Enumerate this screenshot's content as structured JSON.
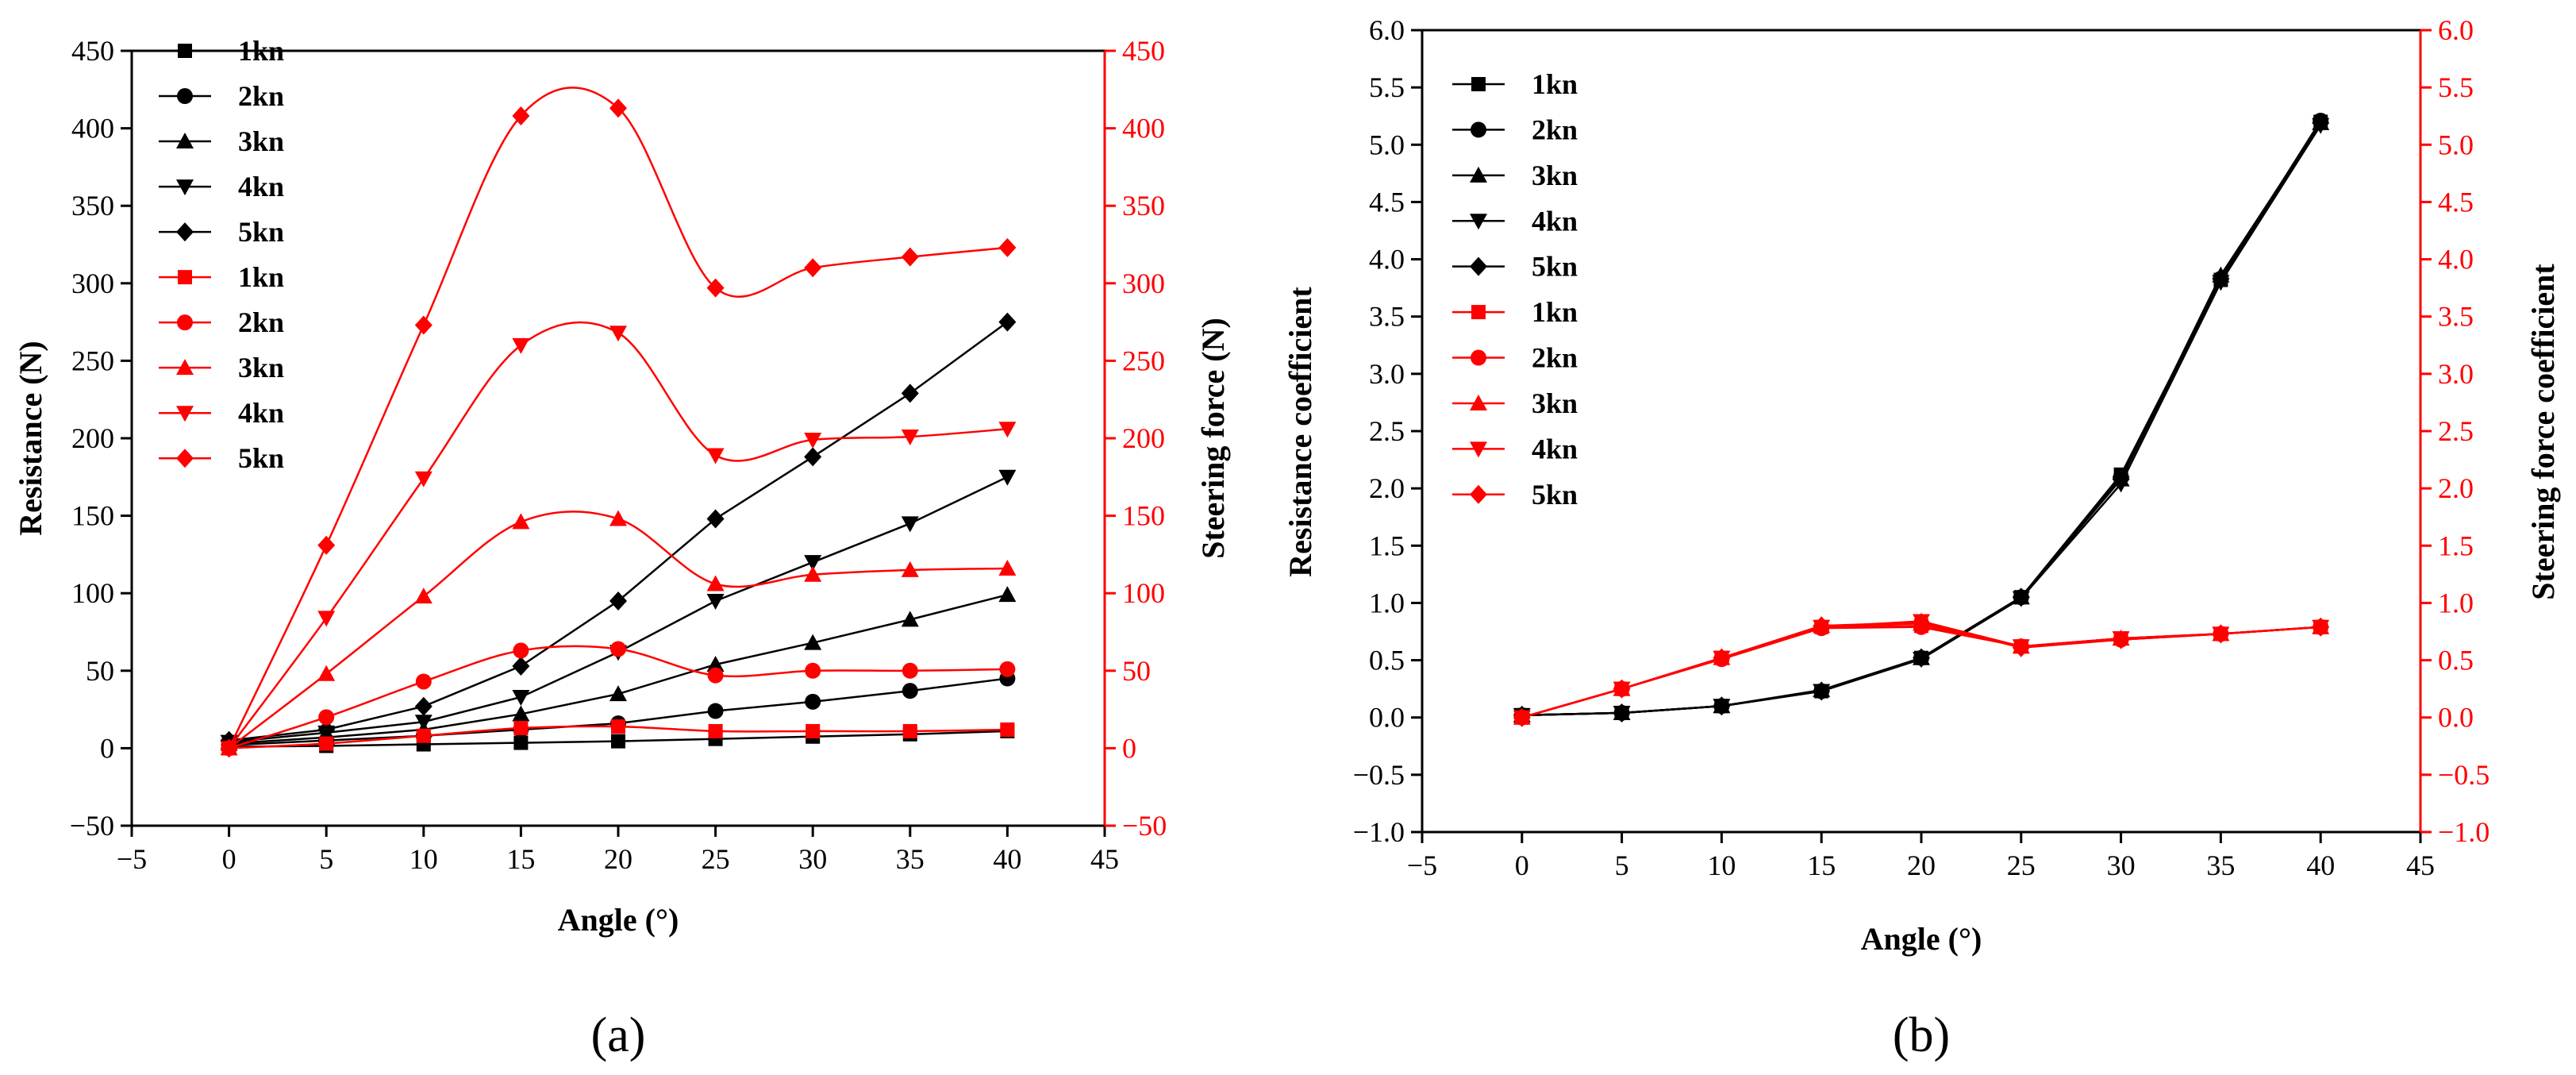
{
  "chart_data": [
    {
      "type": "line",
      "panel_label": "(a)",
      "xlabel": "Angle (°)",
      "ylabel": "Resistance (N)",
      "y2label": "Steering force (N)",
      "xlim": [
        -5,
        45
      ],
      "ylim": [
        -50,
        450
      ],
      "y2lim": [
        -50,
        450
      ],
      "xticks": [
        -5,
        0,
        5,
        10,
        15,
        20,
        25,
        30,
        35,
        40,
        45
      ],
      "yticks": [
        -50,
        0,
        50,
        100,
        150,
        200,
        250,
        300,
        350,
        400,
        450
      ],
      "y2ticks": [
        -50,
        0,
        50,
        100,
        150,
        200,
        250,
        300,
        350,
        400,
        450
      ],
      "x": [
        0,
        5,
        10,
        15,
        20,
        25,
        30,
        35,
        40
      ],
      "legend_position": "top-left",
      "series": [
        {
          "name": "1kn",
          "axis": "left",
          "color": "#000000",
          "marker": "square",
          "smooth": false,
          "values": [
            1,
            1.5,
            2.5,
            3.5,
            4.5,
            6,
            7.5,
            9,
            11
          ]
        },
        {
          "name": "2kn",
          "axis": "left",
          "color": "#000000",
          "marker": "circle",
          "smooth": false,
          "values": [
            2,
            5,
            8,
            12,
            16,
            24,
            30,
            37,
            45
          ]
        },
        {
          "name": "3kn",
          "axis": "left",
          "color": "#000000",
          "marker": "triangle-up",
          "smooth": false,
          "values": [
            3,
            7,
            12,
            22,
            35,
            54,
            68,
            83,
            99
          ]
        },
        {
          "name": "4kn",
          "axis": "left",
          "color": "#000000",
          "marker": "triangle-down",
          "smooth": false,
          "values": [
            4,
            10,
            17,
            33,
            62,
            95,
            120,
            145,
            175
          ]
        },
        {
          "name": "5kn",
          "axis": "left",
          "color": "#000000",
          "marker": "diamond",
          "smooth": false,
          "values": [
            5,
            12,
            27,
            53,
            95,
            148,
            188,
            229,
            275
          ]
        },
        {
          "name": "1kn",
          "axis": "right",
          "color": "#ff0000",
          "marker": "square",
          "smooth": true,
          "values": [
            0,
            3,
            8,
            13,
            14,
            11,
            11,
            11,
            12
          ]
        },
        {
          "name": "2kn",
          "axis": "right",
          "color": "#ff0000",
          "marker": "circle",
          "smooth": true,
          "values": [
            0,
            20,
            43,
            63,
            64,
            47,
            50,
            50,
            51
          ]
        },
        {
          "name": "3kn",
          "axis": "right",
          "color": "#ff0000",
          "marker": "triangle-up",
          "smooth": true,
          "values": [
            0,
            48,
            98,
            146,
            148,
            106,
            112,
            115,
            116
          ]
        },
        {
          "name": "4kn",
          "axis": "right",
          "color": "#ff0000",
          "marker": "triangle-down",
          "smooth": true,
          "values": [
            0,
            84,
            174,
            260,
            268,
            189,
            199,
            201,
            206
          ]
        },
        {
          "name": "5kn",
          "axis": "right",
          "color": "#ff0000",
          "marker": "diamond",
          "smooth": true,
          "values": [
            0,
            131,
            273,
            408,
            413,
            297,
            310,
            317,
            323
          ]
        }
      ]
    },
    {
      "type": "line",
      "panel_label": "(b)",
      "xlabel": "Angle (°)",
      "ylabel": "Resistance coefficient",
      "y2label": "Steering force coefficient",
      "xlim": [
        -5,
        45
      ],
      "ylim": [
        -1.0,
        6.0
      ],
      "y2lim": [
        -1.0,
        6.0
      ],
      "xticks": [
        -5,
        0,
        5,
        10,
        15,
        20,
        25,
        30,
        35,
        40,
        45
      ],
      "yticks": [
        "−1.0",
        "−0.5",
        "0.0",
        "0.5",
        "1.0",
        "1.5",
        "2.0",
        "2.5",
        "3.0",
        "3.5",
        "4.0",
        "4.5",
        "5.0",
        "5.5",
        "6.0"
      ],
      "y2ticks": [
        "−1.0",
        "−0.5",
        "0.0",
        "0.5",
        "1.0",
        "1.5",
        "2.0",
        "2.5",
        "3.0",
        "3.5",
        "4.0",
        "4.5",
        "5.0",
        "5.5",
        "6.0"
      ],
      "x": [
        0,
        5,
        10,
        15,
        20,
        25,
        30,
        35,
        40
      ],
      "legend_position": "top-left",
      "series": [
        {
          "name": "1kn",
          "axis": "left",
          "color": "#000000",
          "marker": "square",
          "smooth": false,
          "values": [
            0.02,
            0.04,
            0.1,
            0.23,
            0.52,
            1.05,
            2.12,
            3.82,
            5.2
          ]
        },
        {
          "name": "2kn",
          "axis": "left",
          "color": "#000000",
          "marker": "circle",
          "smooth": false,
          "values": [
            0.02,
            0.04,
            0.1,
            0.23,
            0.52,
            1.05,
            2.1,
            3.83,
            5.21
          ]
        },
        {
          "name": "3kn",
          "axis": "left",
          "color": "#000000",
          "marker": "triangle-up",
          "smooth": false,
          "values": [
            0.02,
            0.04,
            0.1,
            0.24,
            0.52,
            1.05,
            2.08,
            3.86,
            5.19
          ]
        },
        {
          "name": "4kn",
          "axis": "left",
          "color": "#000000",
          "marker": "triangle-down",
          "smooth": false,
          "values": [
            0.02,
            0.04,
            0.1,
            0.23,
            0.51,
            1.04,
            2.04,
            3.8,
            5.17
          ]
        },
        {
          "name": "5kn",
          "axis": "left",
          "color": "#000000",
          "marker": "diamond",
          "smooth": false,
          "values": [
            0.02,
            0.04,
            0.1,
            0.23,
            0.52,
            1.05,
            2.08,
            3.83,
            5.19
          ]
        },
        {
          "name": "1kn",
          "axis": "right",
          "color": "#ff0000",
          "marker": "square",
          "smooth": false,
          "values": [
            0,
            0.25,
            0.52,
            0.79,
            0.8,
            0.62,
            0.69,
            0.73,
            0.79
          ]
        },
        {
          "name": "2kn",
          "axis": "right",
          "color": "#ff0000",
          "marker": "circle",
          "smooth": false,
          "values": [
            0,
            0.25,
            0.51,
            0.78,
            0.79,
            0.62,
            0.68,
            0.73,
            0.79
          ]
        },
        {
          "name": "3kn",
          "axis": "right",
          "color": "#ff0000",
          "marker": "triangle-up",
          "smooth": false,
          "values": [
            0,
            0.25,
            0.52,
            0.8,
            0.82,
            0.62,
            0.69,
            0.73,
            0.79
          ]
        },
        {
          "name": "4kn",
          "axis": "right",
          "color": "#ff0000",
          "marker": "triangle-down",
          "smooth": false,
          "values": [
            0,
            0.25,
            0.52,
            0.79,
            0.84,
            0.62,
            0.69,
            0.73,
            0.79
          ]
        },
        {
          "name": "5kn",
          "axis": "right",
          "color": "#ff0000",
          "marker": "diamond",
          "smooth": false,
          "values": [
            0,
            0.25,
            0.52,
            0.8,
            0.83,
            0.61,
            0.68,
            0.73,
            0.79
          ]
        }
      ]
    }
  ]
}
